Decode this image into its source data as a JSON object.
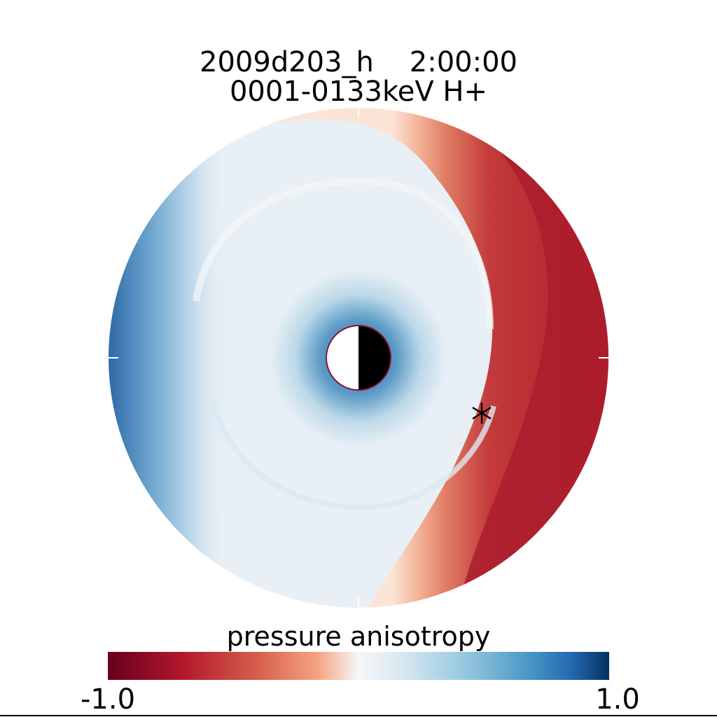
{
  "chart_data": {
    "type": "heatmap",
    "title": "2009d203_h    2:00:00",
    "subtitle": "0001-0133keV H+",
    "colorbar": {
      "label": "pressure anisotropy",
      "min_label": "-1.0",
      "max_label": "1.0",
      "range": [
        -1.0,
        1.0
      ],
      "colormap": "red-white-blue (diverging)",
      "n_levels": 50,
      "low_color": "#67001f",
      "mid_color": "#f7f7f7",
      "high_color": "#053061"
    },
    "map": {
      "shape": "polar disk",
      "planet_marker": "half-lit circle (day side left, night side right)",
      "marker_symbol": "asterisk",
      "dominant_pattern": "positive anisotropy (blue) across the inner disk and dawn side; negative anisotropy (red) on the dusk/outer right side",
      "max_value_estimate": 0.85,
      "min_value_estimate": -0.9
    }
  }
}
